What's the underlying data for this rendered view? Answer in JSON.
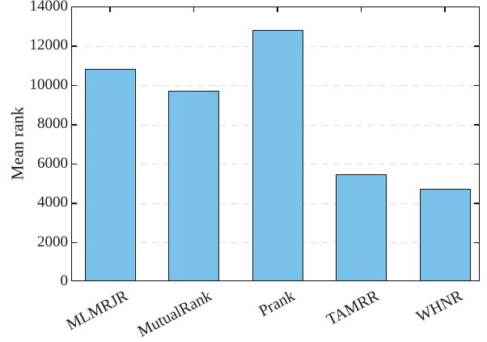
{
  "chart_data": {
    "type": "bar",
    "title": "",
    "ylabel": "Mean rank",
    "xlabel": "",
    "categories": [
      "MLMRJR",
      "MutualRank",
      "Prank",
      "TAMRR",
      "WHNR"
    ],
    "values": [
      10800,
      9650,
      12750,
      5400,
      4650
    ],
    "ylim": [
      0,
      14000
    ],
    "ytick_step": 2000,
    "ytick_labels": [
      "0",
      "2000",
      "4000",
      "6000",
      "8000",
      "10000",
      "12000",
      "14000"
    ],
    "grid": "horizontal dashed",
    "legend_position": "none",
    "x_label_rotation_deg": 28,
    "colors": {
      "bar_fill": "#7AC1EA",
      "bar_border": "#151A21",
      "grid": "#DCDCDC",
      "axis": "#111111",
      "text": "#1A1A1A",
      "background": "#FFFFFF"
    }
  }
}
